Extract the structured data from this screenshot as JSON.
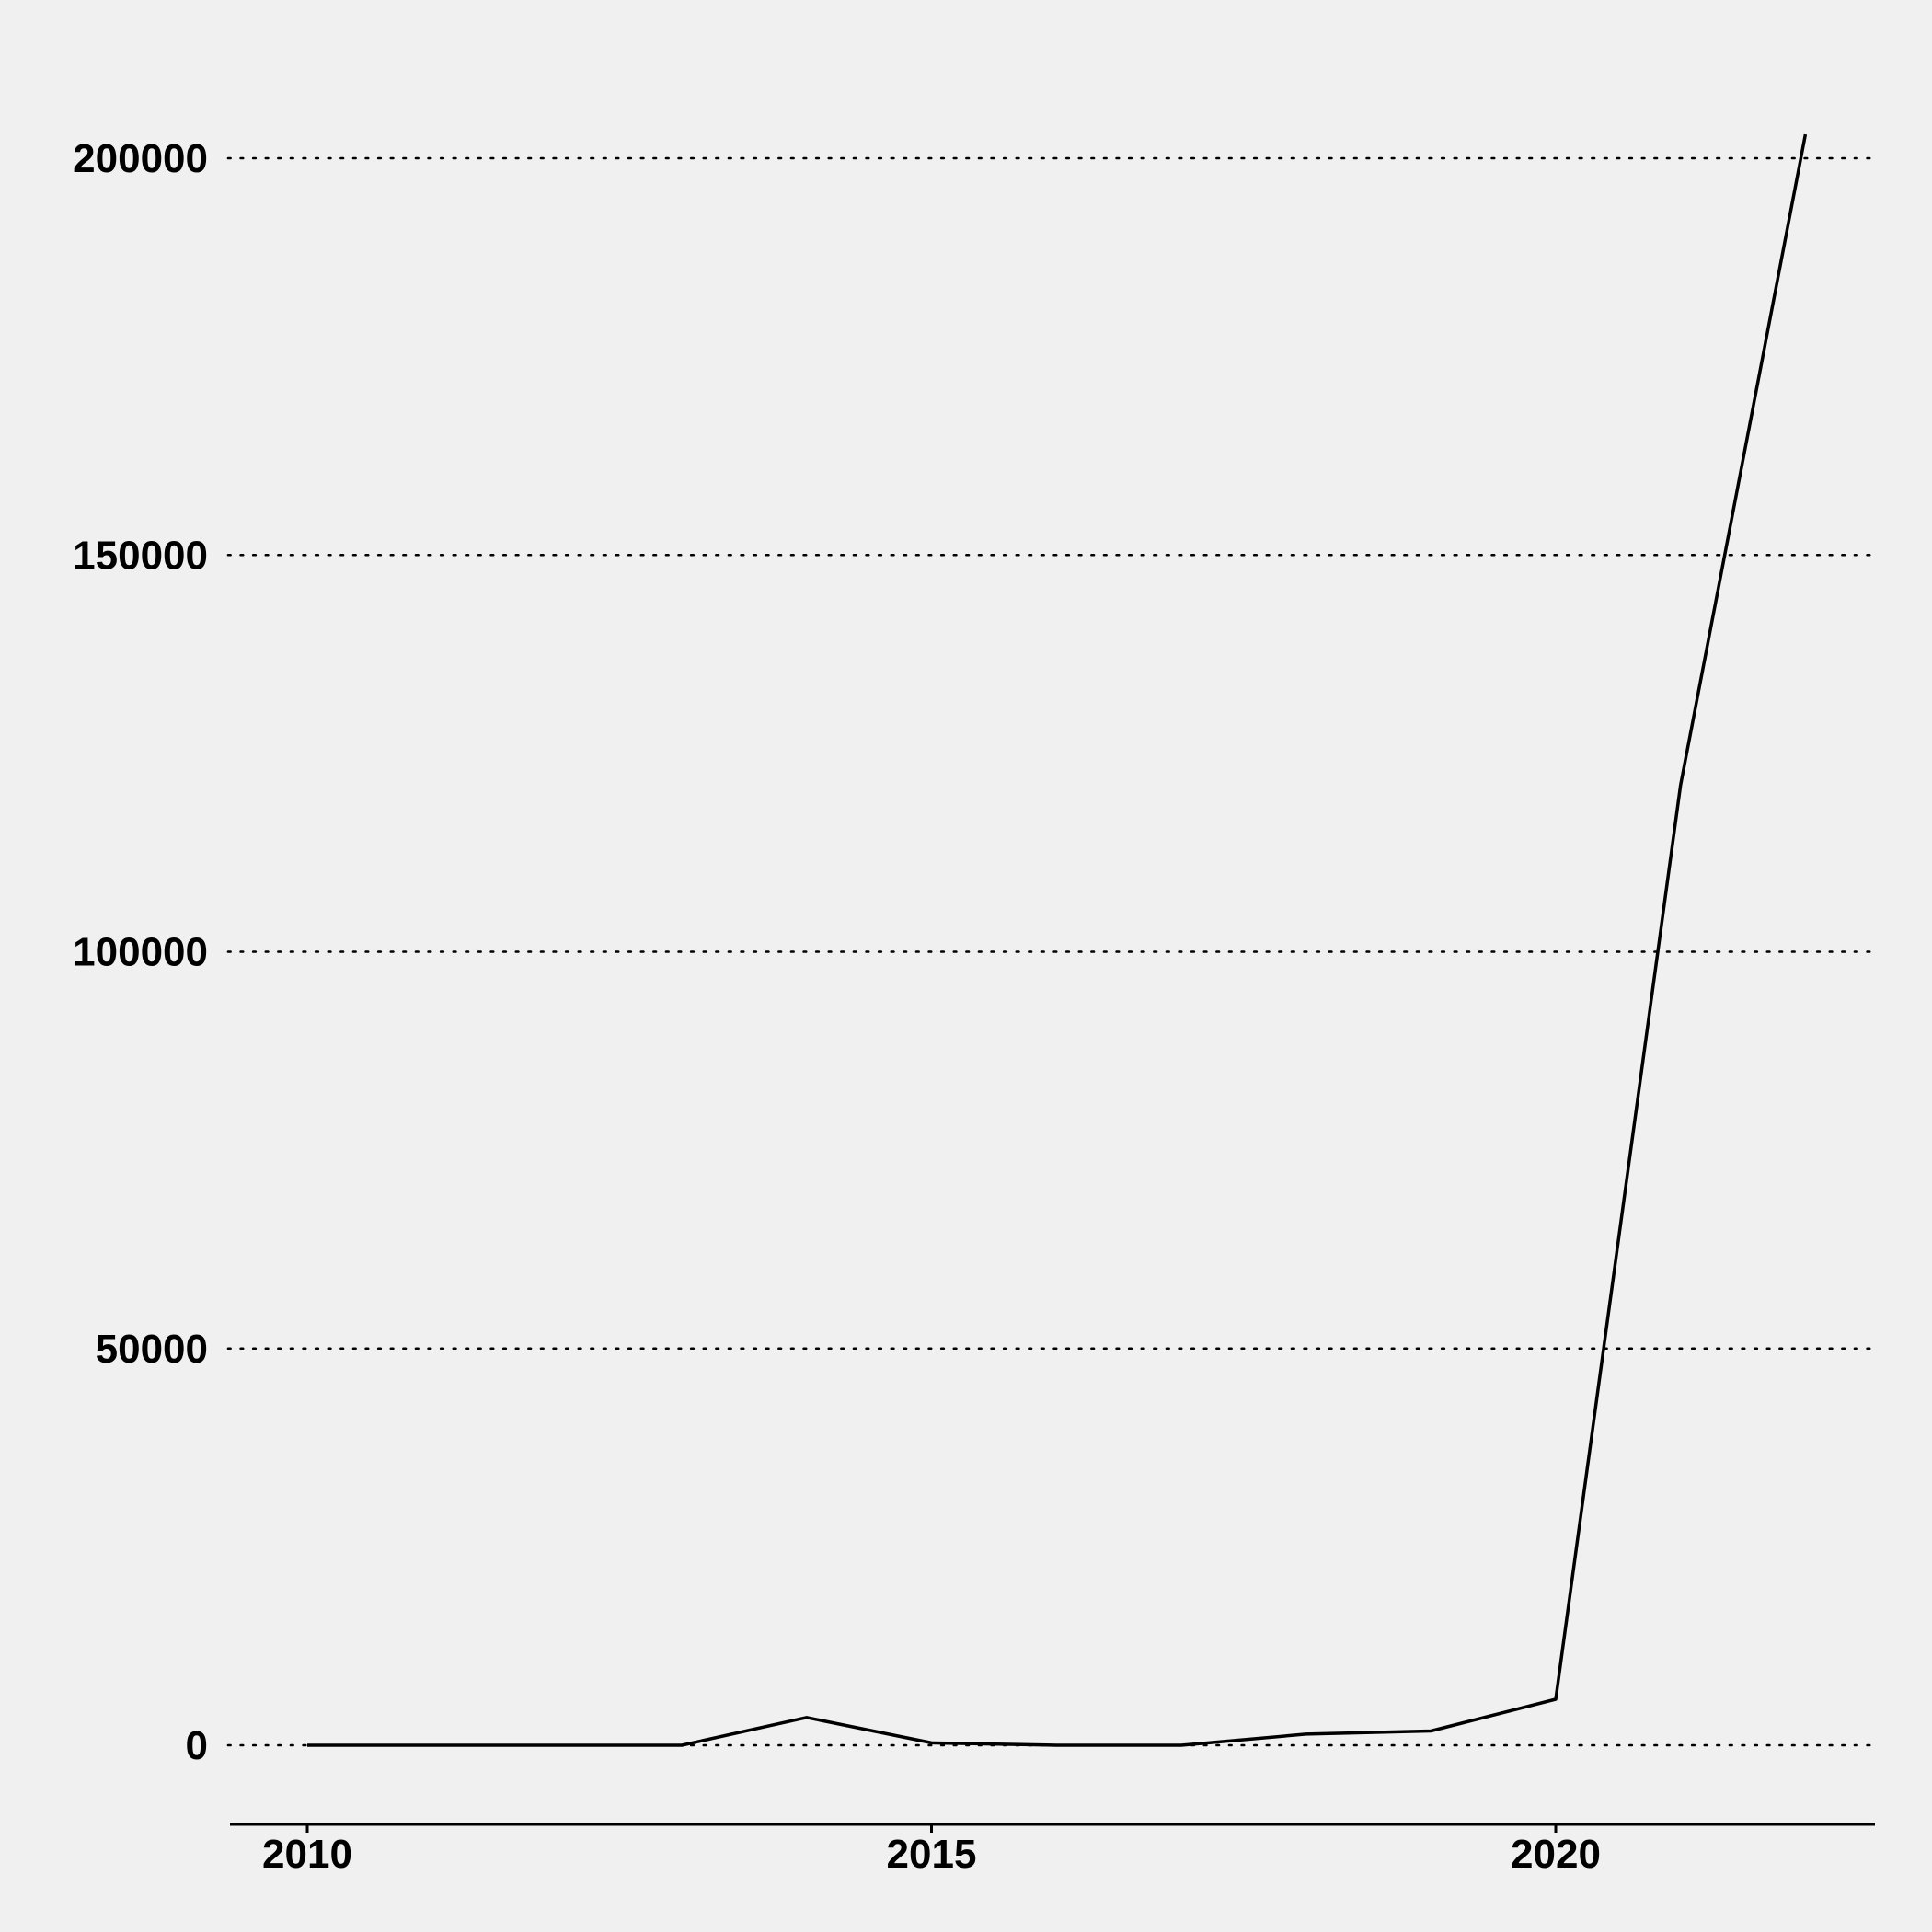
{
  "chart_data": {
    "type": "line",
    "title": "",
    "xlabel": "",
    "ylabel": "",
    "x": [
      2010,
      2011,
      2012,
      2013,
      2014,
      2015,
      2016,
      2017,
      2018,
      2019,
      2020,
      2021,
      2022
    ],
    "series": [
      {
        "values": [
          0,
          0,
          0,
          0,
          3500,
          300,
          0,
          0,
          1400,
          1800,
          5800,
          121000,
          203000
        ]
      }
    ],
    "xlim": [
      2009.4,
      2022.6
    ],
    "ylim": [
      -10000,
      210000
    ],
    "x_ticks": [
      2010,
      2015,
      2020
    ],
    "x_tick_labels": [
      "2010",
      "2015",
      "2020"
    ],
    "y_ticks": [
      0,
      50000,
      100000,
      150000,
      200000
    ],
    "y_tick_labels": [
      "0",
      "50000",
      "100000",
      "150000",
      "200000"
    ],
    "grid": {
      "horizontal": true,
      "vertical": false,
      "style": "dotted"
    },
    "legend": "none",
    "colors": {
      "background": "#f0f0f0",
      "line": "#000000"
    }
  }
}
